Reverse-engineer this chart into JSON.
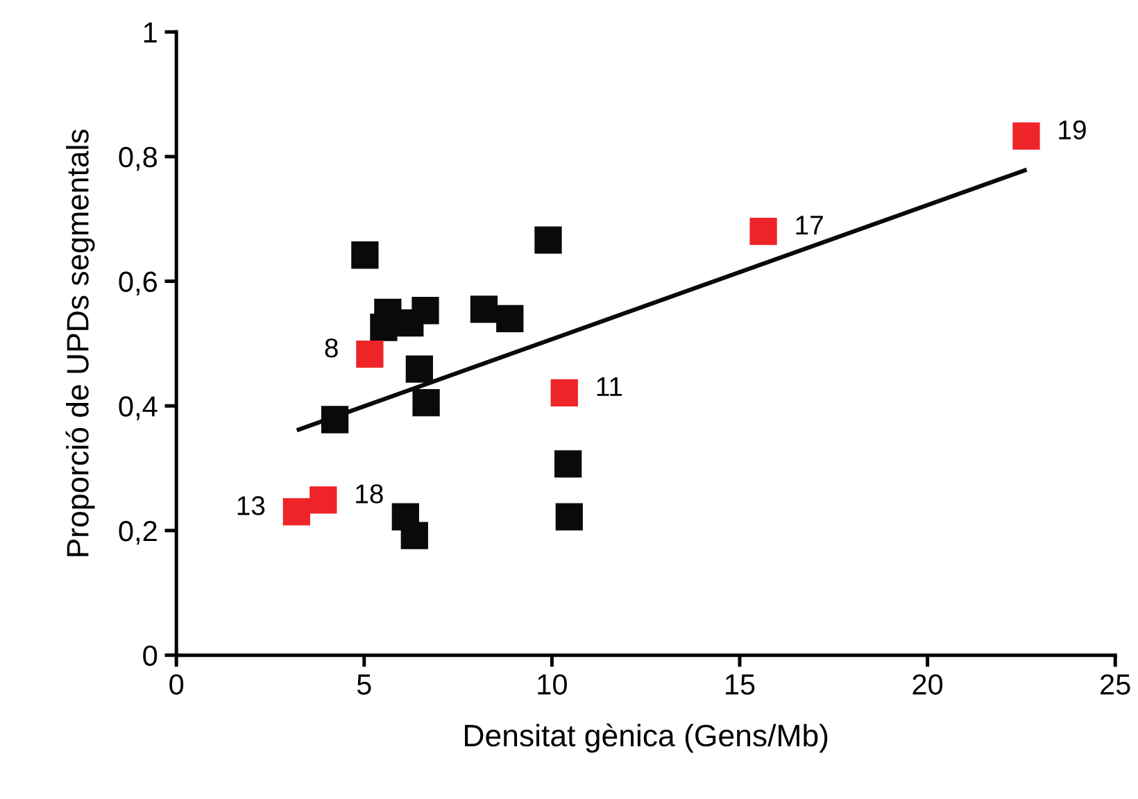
{
  "chart_data": {
    "type": "scatter",
    "xlabel": "Densitat gènica (Gens/Mb)",
    "ylabel": "Proporció de UPDs segmentals",
    "marker": "square",
    "grid": false,
    "legend": false,
    "xlim": [
      0,
      25
    ],
    "xticks": [
      0,
      5,
      10,
      15,
      20,
      25
    ],
    "ylim": [
      0,
      1
    ],
    "yticks": [
      0,
      {
        "value": 0.2,
        "label": "0,2"
      },
      {
        "value": 0.4,
        "label": "0,4"
      },
      {
        "value": 0.6,
        "label": "0,6"
      },
      {
        "value": 0.8,
        "label": "0,8"
      },
      1
    ],
    "series": [
      {
        "color": "#0a0a0a",
        "x": [
          5.02,
          5.63,
          5.52,
          6.22,
          6.63,
          8.19,
          8.88,
          9.9,
          6.47,
          6.65,
          4.22,
          10.43,
          10.46,
          6.1,
          6.34
        ],
        "values": [
          0.642,
          0.55,
          0.526,
          0.533,
          0.553,
          0.555,
          0.54,
          0.666,
          0.459,
          0.405,
          0.378,
          0.307,
          0.222,
          0.222,
          0.192
        ]
      },
      {
        "color": "#ee2429",
        "x": [
          5.15,
          10.33,
          3.2,
          3.91,
          15.63,
          22.63
        ],
        "values": [
          0.483,
          0.421,
          0.23,
          0.249,
          0.68,
          0.833
        ]
      },
      {
        "type": "line",
        "marker": "none",
        "color": "#0a0a0a",
        "x": [
          3.26,
          22.59
        ],
        "values": [
          0.362,
          0.778
        ]
      }
    ],
    "annotations": [
      {
        "text": "8",
        "x": 5.15,
        "y": 0.483
      },
      {
        "text": "11",
        "x": 10.33,
        "y": 0.421
      },
      {
        "text": "13",
        "x": 3.2,
        "y": 0.23
      },
      {
        "text": "18",
        "x": 3.91,
        "y": 0.249
      },
      {
        "text": "17",
        "x": 15.63,
        "y": 0.68
      },
      {
        "text": "19",
        "x": 22.63,
        "y": 0.833
      }
    ]
  }
}
